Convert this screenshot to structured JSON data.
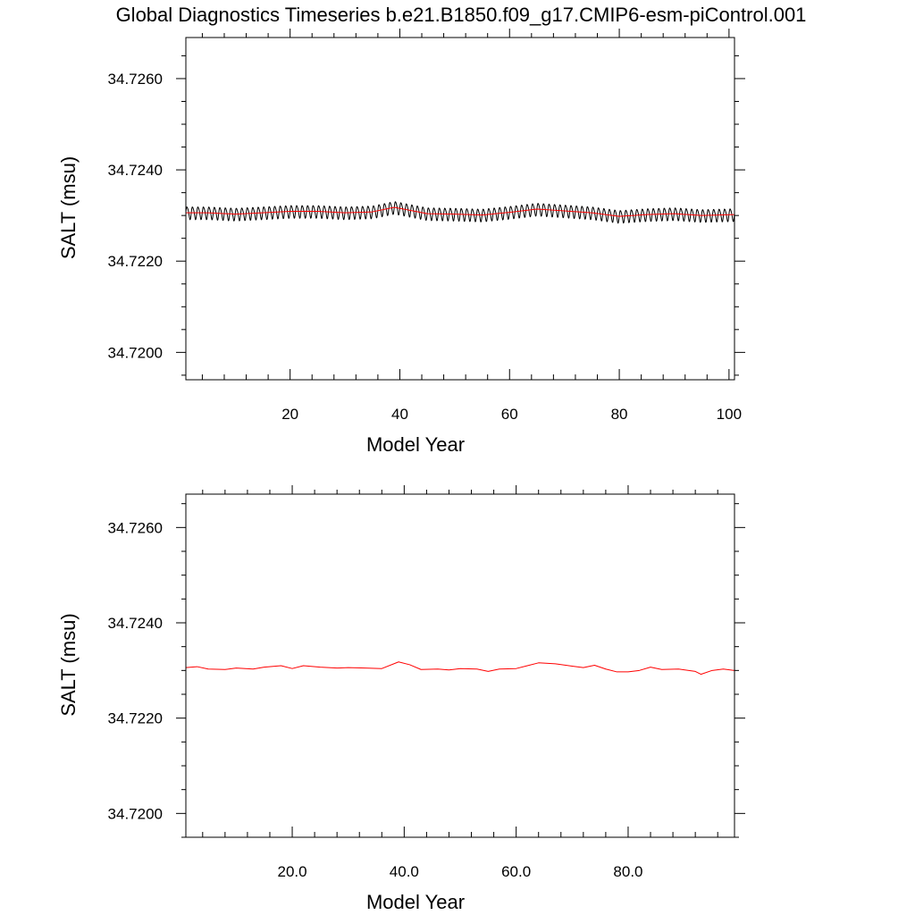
{
  "figure": {
    "title": "Global Diagnostics Timeseries b.e21.B1850.f09_g17.CMIP6-esm-piControl.001"
  },
  "chart_data": [
    {
      "type": "line",
      "xlabel": "Model Year",
      "ylabel": "SALT (msu)",
      "xlim": [
        1,
        101
      ],
      "ylim": [
        34.7194,
        34.7269
      ],
      "xticks": [
        20,
        40,
        60,
        80,
        100
      ],
      "xtick_labels": [
        "20",
        "40",
        "60",
        "80",
        "100"
      ],
      "yticks": [
        34.72,
        34.722,
        34.724,
        34.726
      ],
      "ytick_labels": [
        "34.7200",
        "34.7220",
        "34.7240",
        "34.7260"
      ],
      "grid": false,
      "series": [
        {
          "kind": "monthly",
          "color": "#000000",
          "seasonal_amplitude": 0.00016,
          "x": [
            1,
            5,
            10,
            15,
            20,
            25,
            30,
            35,
            39,
            45,
            50,
            55,
            60,
            65,
            70,
            75,
            80,
            85,
            90,
            95,
            101
          ],
          "values": [
            34.72306,
            34.72306,
            34.72303,
            34.72306,
            34.72309,
            34.72309,
            34.72306,
            34.72308,
            34.72318,
            34.72304,
            34.72303,
            34.72301,
            34.72307,
            34.72314,
            34.7231,
            34.72306,
            34.72298,
            34.72302,
            34.72304,
            34.723,
            34.72302
          ]
        },
        {
          "kind": "annual",
          "color": "#ff0000",
          "x": [
            1,
            5,
            10,
            15,
            20,
            25,
            30,
            35,
            39,
            45,
            50,
            55,
            60,
            65,
            70,
            75,
            80,
            85,
            90,
            95,
            101
          ],
          "values": [
            34.72306,
            34.72306,
            34.72303,
            34.72306,
            34.72309,
            34.72309,
            34.72306,
            34.72308,
            34.72318,
            34.72304,
            34.72303,
            34.72301,
            34.72307,
            34.72314,
            34.7231,
            34.72306,
            34.72298,
            34.72302,
            34.72304,
            34.723,
            34.72302
          ]
        }
      ]
    },
    {
      "type": "line",
      "xlabel": "Model Year",
      "ylabel": "SALT (msu)",
      "xlim": [
        1,
        99
      ],
      "ylim": [
        34.7195,
        34.7267
      ],
      "xticks": [
        20,
        40,
        60,
        80
      ],
      "xtick_labels": [
        "20.0",
        "40.0",
        "60.0",
        "80.0"
      ],
      "yticks": [
        34.72,
        34.722,
        34.724,
        34.726
      ],
      "ytick_labels": [
        "34.7200",
        "34.7220",
        "34.7240",
        "34.7260"
      ],
      "grid": false,
      "series": [
        {
          "kind": "annual",
          "color": "#ff0000",
          "x": [
            1,
            3,
            5,
            8,
            10,
            13,
            15,
            18,
            20,
            22,
            25,
            28,
            30,
            33,
            36,
            39,
            41,
            43,
            46,
            48,
            50,
            53,
            55,
            57,
            60,
            62,
            64,
            67,
            70,
            72,
            74,
            76,
            78,
            80,
            82,
            84,
            86,
            89,
            92,
            93,
            95,
            97,
            99
          ],
          "values": [
            34.72306,
            34.72308,
            34.72303,
            34.72302,
            34.72305,
            34.72303,
            34.72307,
            34.7231,
            34.72304,
            34.7231,
            34.72307,
            34.72305,
            34.72306,
            34.72305,
            34.72304,
            34.72318,
            34.72312,
            34.72302,
            34.72303,
            34.72301,
            34.72304,
            34.72303,
            34.72298,
            34.72303,
            34.72304,
            34.7231,
            34.72316,
            34.72314,
            34.72309,
            34.72306,
            34.72311,
            34.72303,
            34.72297,
            34.72297,
            34.723,
            34.72307,
            34.72302,
            34.72303,
            34.72298,
            34.72292,
            34.723,
            34.72303,
            34.723
          ]
        }
      ]
    }
  ]
}
